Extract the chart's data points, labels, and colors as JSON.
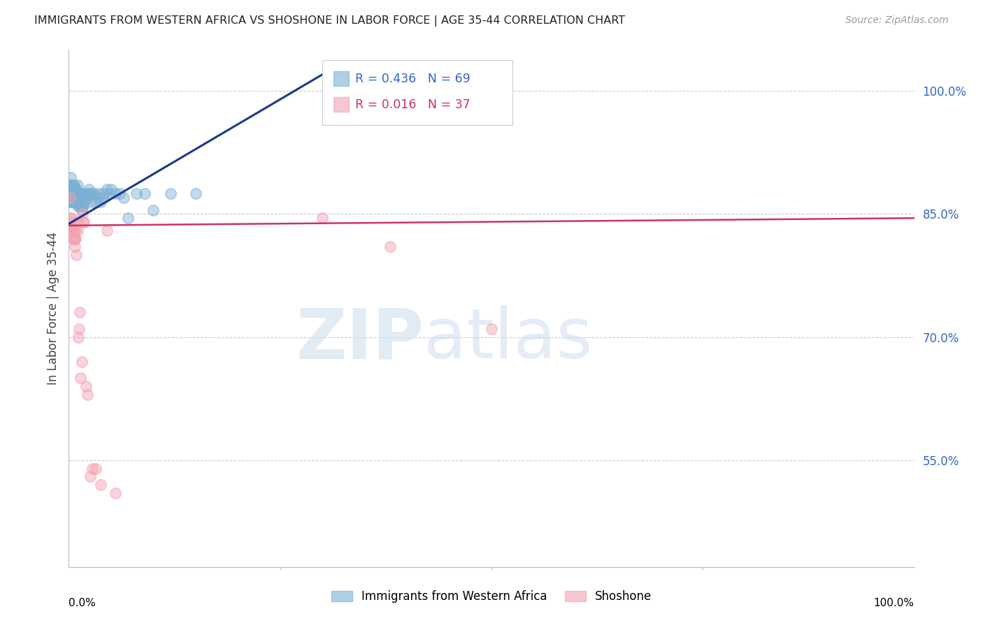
{
  "title": "IMMIGRANTS FROM WESTERN AFRICA VS SHOSHONE IN LABOR FORCE | AGE 35-44 CORRELATION CHART",
  "source": "Source: ZipAtlas.com",
  "ylabel": "In Labor Force | Age 35-44",
  "ytick_vals": [
    1.0,
    0.85,
    0.7,
    0.55
  ],
  "ytick_labels": [
    "100.0%",
    "85.0%",
    "70.0%",
    "55.0%"
  ],
  "xlim": [
    0.0,
    1.0
  ],
  "ylim": [
    0.42,
    1.05
  ],
  "blue_color": "#7bafd4",
  "pink_color": "#f4a0b0",
  "blue_line_color": "#1a3a8c",
  "pink_line_color": "#cc3366",
  "legend_label_blue": "Immigrants from Western Africa",
  "legend_label_pink": "Shoshone",
  "blue_R": 0.436,
  "blue_N": 69,
  "pink_R": 0.016,
  "pink_N": 37,
  "blue_trendline_x": [
    0.0,
    0.3
  ],
  "blue_trendline_y": [
    0.838,
    1.02
  ],
  "pink_trendline_x": [
    0.0,
    1.0
  ],
  "pink_trendline_y": [
    0.836,
    0.845
  ],
  "blue_scatter_x": [
    0.001,
    0.001,
    0.001,
    0.002,
    0.002,
    0.002,
    0.002,
    0.003,
    0.003,
    0.003,
    0.004,
    0.004,
    0.004,
    0.005,
    0.005,
    0.005,
    0.006,
    0.006,
    0.006,
    0.007,
    0.007,
    0.008,
    0.008,
    0.009,
    0.009,
    0.01,
    0.01,
    0.01,
    0.011,
    0.011,
    0.012,
    0.012,
    0.013,
    0.013,
    0.014,
    0.014,
    0.015,
    0.015,
    0.016,
    0.016,
    0.017,
    0.018,
    0.019,
    0.02,
    0.021,
    0.022,
    0.024,
    0.025,
    0.026,
    0.028,
    0.03,
    0.032,
    0.034,
    0.036,
    0.038,
    0.04,
    0.042,
    0.045,
    0.048,
    0.05,
    0.055,
    0.06,
    0.065,
    0.07,
    0.08,
    0.09,
    0.1,
    0.12,
    0.15
  ],
  "blue_scatter_y": [
    0.865,
    0.875,
    0.885,
    0.87,
    0.875,
    0.885,
    0.895,
    0.87,
    0.875,
    0.88,
    0.865,
    0.875,
    0.885,
    0.865,
    0.875,
    0.885,
    0.865,
    0.875,
    0.885,
    0.87,
    0.88,
    0.865,
    0.875,
    0.865,
    0.88,
    0.86,
    0.875,
    0.885,
    0.865,
    0.875,
    0.86,
    0.875,
    0.865,
    0.875,
    0.86,
    0.875,
    0.855,
    0.87,
    0.86,
    0.875,
    0.86,
    0.87,
    0.865,
    0.875,
    0.87,
    0.875,
    0.88,
    0.875,
    0.865,
    0.875,
    0.875,
    0.865,
    0.87,
    0.875,
    0.865,
    0.87,
    0.875,
    0.88,
    0.875,
    0.88,
    0.875,
    0.875,
    0.87,
    0.845,
    0.875,
    0.875,
    0.855,
    0.875,
    0.875
  ],
  "pink_scatter_x": [
    0.001,
    0.002,
    0.002,
    0.003,
    0.003,
    0.004,
    0.004,
    0.005,
    0.005,
    0.006,
    0.006,
    0.007,
    0.007,
    0.008,
    0.008,
    0.009,
    0.01,
    0.01,
    0.011,
    0.012,
    0.013,
    0.014,
    0.015,
    0.016,
    0.017,
    0.018,
    0.02,
    0.022,
    0.025,
    0.028,
    0.032,
    0.038,
    0.045,
    0.055,
    0.3,
    0.38,
    0.5
  ],
  "pink_scatter_y": [
    0.87,
    0.835,
    0.845,
    0.835,
    0.845,
    0.83,
    0.84,
    0.82,
    0.83,
    0.82,
    0.83,
    0.81,
    0.82,
    0.82,
    0.83,
    0.8,
    0.83,
    0.84,
    0.7,
    0.71,
    0.73,
    0.65,
    0.67,
    0.85,
    0.84,
    0.84,
    0.64,
    0.63,
    0.53,
    0.54,
    0.54,
    0.52,
    0.83,
    0.51,
    0.845,
    0.81,
    0.71
  ],
  "marker_size": 120,
  "marker_lw": 1.5
}
